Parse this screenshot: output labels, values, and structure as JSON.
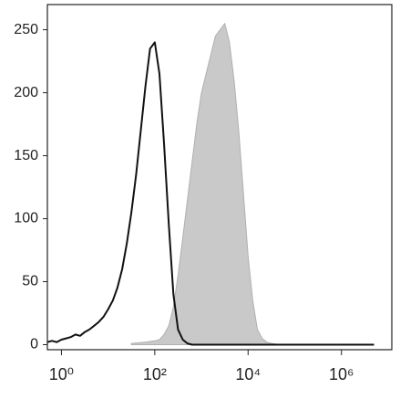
{
  "chart_data": {
    "type": "histogram-overlay",
    "xscale": "log",
    "xlim": [
      0.5,
      12000000
    ],
    "ylim": [
      -4,
      270
    ],
    "xticks": [
      {
        "value": 1,
        "label": "10⁰"
      },
      {
        "value": 100,
        "label": "10²"
      },
      {
        "value": 10000,
        "label": "10⁴"
      },
      {
        "value": 1000000,
        "label": "10⁶"
      }
    ],
    "yticks": [
      0,
      50,
      100,
      150,
      200,
      250
    ],
    "series": [
      {
        "color": "#b0b0b0",
        "fill": "#c9c9c9",
        "filled": true,
        "x": [
          31.6,
          63.1,
          100,
          126,
          158,
          200,
          251,
          316,
          398,
          501,
          631,
          794,
          1000,
          1259,
          1585,
          1995,
          2512,
          3162,
          3981,
          5012,
          6310,
          7943,
          10000,
          12589,
          15849,
          19953,
          25119,
          31623,
          50119
        ],
        "values": [
          1,
          2,
          3,
          4,
          8,
          15,
          30,
          55,
          85,
          115,
          145,
          175,
          200,
          215,
          230,
          245,
          250,
          255,
          240,
          210,
          170,
          120,
          70,
          35,
          12,
          5,
          2,
          1,
          0
        ]
      },
      {
        "color": "#111111",
        "filled": false,
        "x": [
          0.5,
          0.63,
          0.79,
          1,
          1.26,
          1.58,
          2,
          2.51,
          3.16,
          3.98,
          5.01,
          6.31,
          7.94,
          10,
          12.6,
          15.8,
          20,
          25.1,
          31.6,
          39.8,
          50.1,
          63.1,
          79.4,
          100,
          126,
          158,
          200,
          251,
          316,
          398,
          501,
          631,
          3162,
          100000,
          5000000
        ],
        "values": [
          2,
          3,
          2,
          4,
          5,
          6,
          8,
          7,
          10,
          12,
          15,
          18,
          22,
          28,
          35,
          45,
          60,
          80,
          105,
          135,
          170,
          205,
          235,
          240,
          215,
          160,
          95,
          40,
          12,
          4,
          1,
          0,
          0,
          0,
          0
        ]
      }
    ]
  }
}
